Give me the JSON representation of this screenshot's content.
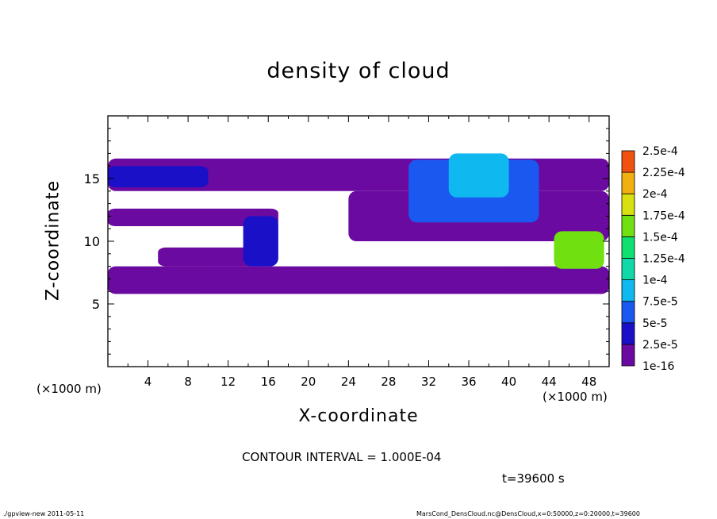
{
  "chart_data": {
    "type": "heatmap",
    "title": "density of cloud",
    "xlabel": "X-coordinate",
    "ylabel": "Z-coordinate",
    "x_unit_label": "(×1000 m)",
    "xlim": [
      0,
      50
    ],
    "ylim": [
      0,
      20
    ],
    "x_ticks": [
      4,
      8,
      12,
      16,
      20,
      24,
      28,
      32,
      36,
      40,
      44,
      48
    ],
    "y_ticks": [
      5,
      10,
      15
    ],
    "colorbar": {
      "labels": [
        "1e-16",
        "2.5e-5",
        "5e-5",
        "7.5e-5",
        "1e-4",
        "1.25e-4",
        "1.5e-4",
        "1.75e-4",
        "2e-4",
        "2.25e-4",
        "2.5e-4"
      ],
      "colors": [
        "#6a0aa0",
        "#1a10c8",
        "#1a58f0",
        "#10b8f0",
        "#10d8a8",
        "#10e070",
        "#70e010",
        "#d8e010",
        "#f0b010",
        "#f05010",
        "#f0a0a0"
      ]
    },
    "cloud_regions": [
      {
        "x": [
          0,
          50
        ],
        "z": [
          5.8,
          8.0
        ],
        "level": "1e-16"
      },
      {
        "x": [
          5,
          16
        ],
        "z": [
          8.0,
          9.5
        ],
        "level": "1e-16"
      },
      {
        "x": [
          0,
          17
        ],
        "z": [
          11.2,
          12.6
        ],
        "level": "1e-16"
      },
      {
        "x": [
          0,
          50
        ],
        "z": [
          14.0,
          16.6
        ],
        "level": "1e-16"
      },
      {
        "x": [
          24,
          50
        ],
        "z": [
          10.0,
          14.0
        ],
        "level": "1e-16"
      },
      {
        "x": [
          0,
          10
        ],
        "z": [
          14.3,
          16.0
        ],
        "level": "2.5e-5"
      },
      {
        "x": [
          13.5,
          17
        ],
        "z": [
          8.0,
          12.0
        ],
        "level": "2.5e-5"
      },
      {
        "x": [
          30,
          43
        ],
        "z": [
          11.5,
          16.5
        ],
        "level": "5e-5"
      },
      {
        "x": [
          34,
          40
        ],
        "z": [
          13.5,
          17.0
        ],
        "level": "7.5e-5"
      },
      {
        "x": [
          44.5,
          49.5
        ],
        "z": [
          7.8,
          10.8
        ],
        "level": "1.5e-4"
      }
    ]
  },
  "annotations": {
    "contour_interval": "CONTOUR INTERVAL = 1.000E-04",
    "time": "t=39600 s",
    "footer_left": "./gpview-new  2011-05-11",
    "footer_right": "MarsCond_DensCloud.nc@DensCloud,x=0:50000,z=0:20000,t=39600"
  }
}
